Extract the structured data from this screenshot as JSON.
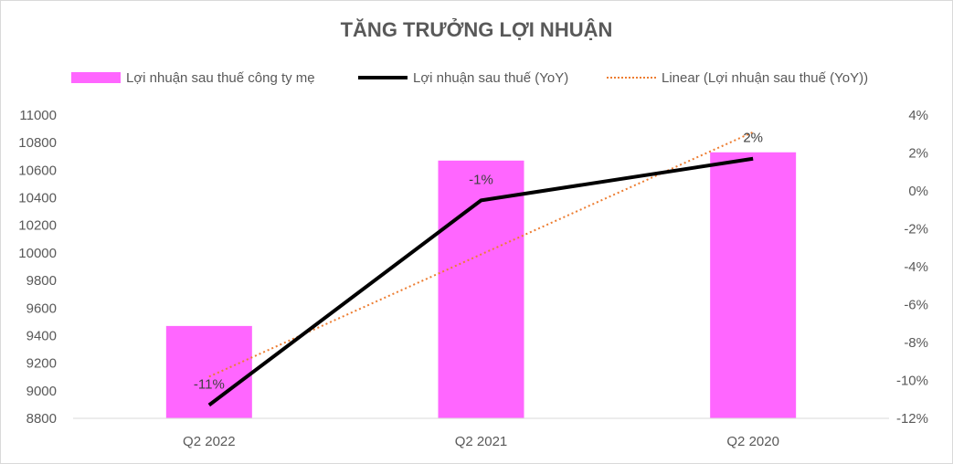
{
  "chart_data": {
    "type": "bar",
    "title": "TĂNG TRƯỞNG LỢI NHUẬN",
    "categories": [
      "Q2 2022",
      "Q2 2021",
      "Q2 2020"
    ],
    "series": [
      {
        "name": "Lợi nhuận sau thuế công ty mẹ",
        "type": "bar",
        "axis": "left",
        "values": [
          9470,
          10670,
          10730
        ],
        "color": "#ff66ff"
      },
      {
        "name": "Lợi nhuận sau thuế (YoY)",
        "type": "line",
        "axis": "right",
        "values": [
          -11.3,
          -0.5,
          1.7
        ],
        "data_labels": [
          "-11%",
          "-1%",
          "2%"
        ],
        "color": "#000000"
      },
      {
        "name": "Linear (Lợi nhuận sau thuế (YoY))",
        "type": "trendline",
        "axis": "right",
        "values": [
          -9.8,
          -3.35,
          3.1
        ],
        "color": "#ed7d31"
      }
    ],
    "y_left": {
      "min": 8800,
      "max": 11000,
      "step": 200,
      "ticks": [
        "8800",
        "9000",
        "9200",
        "9400",
        "9600",
        "9800",
        "10000",
        "10200",
        "10400",
        "10600",
        "10800",
        "11000"
      ]
    },
    "y_right": {
      "min": -12,
      "max": 4,
      "step": 2,
      "ticks": [
        "-12%",
        "-10%",
        "-8%",
        "-6%",
        "-4%",
        "-2%",
        "0%",
        "2%",
        "4%"
      ]
    },
    "legend_position": "top",
    "grid": false
  }
}
